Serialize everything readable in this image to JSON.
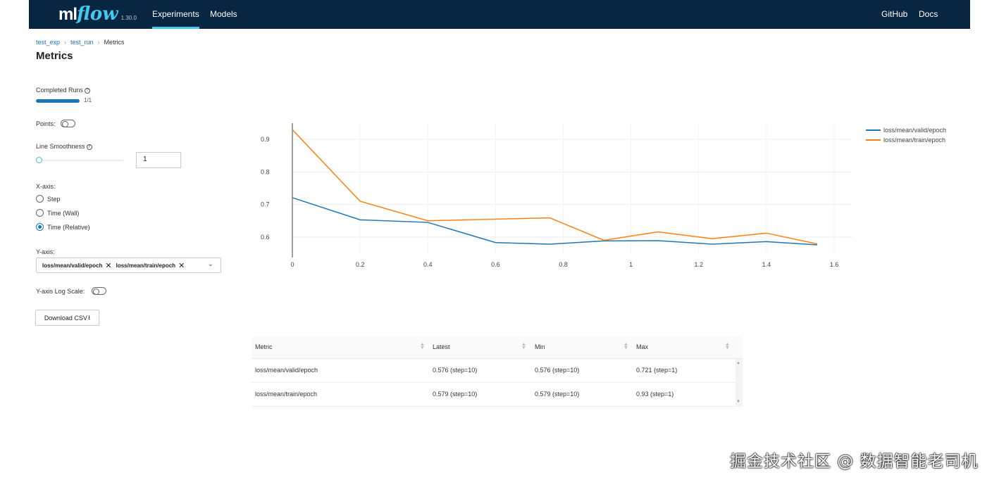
{
  "header": {
    "logo_ml": "ml",
    "logo_flow": "flow",
    "version": "1.30.0",
    "nav": [
      "Experiments",
      "Models"
    ],
    "right_links": [
      "GitHub",
      "Docs"
    ],
    "active_nav": "Experiments"
  },
  "breadcrumb": [
    "test_exp",
    "test_run",
    "Metrics"
  ],
  "page_title": "Metrics",
  "controls": {
    "completed_runs_label": "Completed Runs",
    "completed_runs_text": "1/1",
    "completed_runs_fraction": 1.0,
    "points_label": "Points:",
    "line_smoothness_label": "Line Smoothness",
    "line_smoothness_value": "1",
    "xaxis_label": "X-axis:",
    "xaxis_options": [
      "Step",
      "Time (Wall)",
      "Time (Relative)"
    ],
    "xaxis_selected": "Time (Relative)",
    "yaxis_label": "Y-axis:",
    "yaxis_tags": [
      "loss/mean/valid/epoch",
      "loss/mean/train/epoch"
    ],
    "ylog_label": "Y-axis Log Scale:",
    "download_label": "Download CSV"
  },
  "chart_data": {
    "type": "line",
    "xlim": [
      0,
      1.6
    ],
    "ylim": [
      0.55,
      0.95
    ],
    "xticks": [
      "0",
      "0.2",
      "0.4",
      "0.6",
      "0.8",
      "1",
      "1.2",
      "1.4",
      "1.6"
    ],
    "yticks": [
      "0.9",
      "0.8",
      "0.7",
      "0.6"
    ],
    "grid": true,
    "legend_position": "top-right",
    "series": [
      {
        "name": "loss/mean/valid/epoch",
        "color": "#1f77b4",
        "x": [
          0,
          0.2,
          0.4,
          0.6,
          0.76,
          0.92,
          1.08,
          1.24,
          1.4,
          1.55
        ],
        "y": [
          0.721,
          0.653,
          0.645,
          0.583,
          0.578,
          0.588,
          0.589,
          0.578,
          0.586,
          0.576
        ]
      },
      {
        "name": "loss/mean/train/epoch",
        "color": "#ff7f0e",
        "x": [
          0,
          0.2,
          0.4,
          0.6,
          0.76,
          0.92,
          1.08,
          1.24,
          1.4,
          1.55
        ],
        "y": [
          0.93,
          0.71,
          0.65,
          0.655,
          0.659,
          0.59,
          0.616,
          0.595,
          0.612,
          0.579
        ]
      }
    ]
  },
  "table": {
    "headers": [
      "Metric",
      "Latest",
      "Min",
      "Max"
    ],
    "rows": [
      [
        "loss/mean/valid/epoch",
        "0.576 (step=10)",
        "0.576 (step=10)",
        "0.721 (step=1)"
      ],
      [
        "loss/mean/train/epoch",
        "0.579 (step=10)",
        "0.579 (step=10)",
        "0.93 (step=1)"
      ]
    ]
  },
  "watermark": "掘金技术社区 @ 数据智能老司机"
}
